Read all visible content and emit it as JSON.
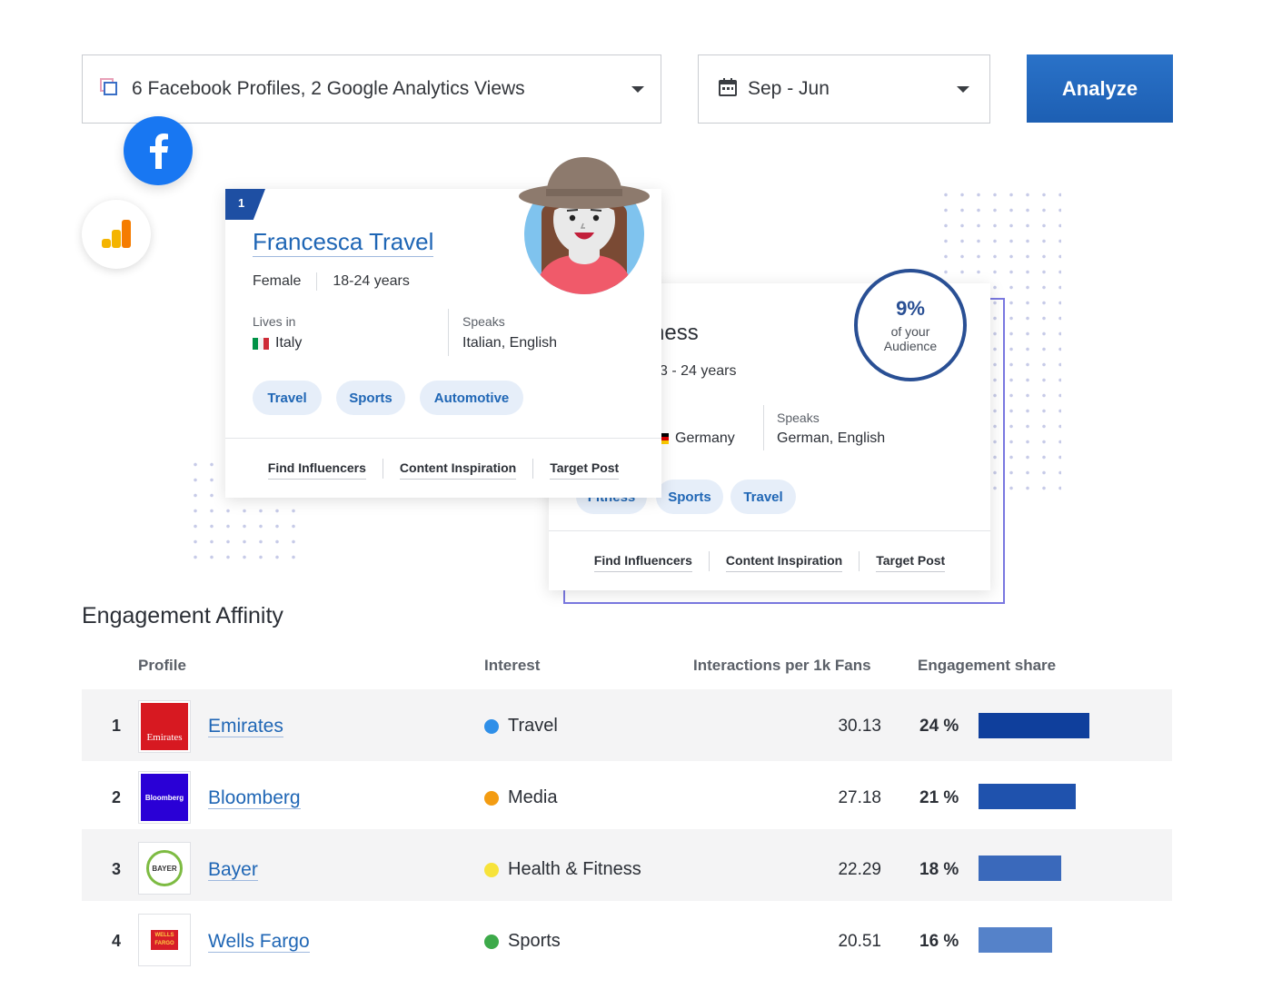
{
  "controls": {
    "profiles_label": "6 Facebook Profiles, 2 Google Analytics Views",
    "date_label": "Sep - Jun",
    "analyze_label": "Analyze"
  },
  "front_card": {
    "rank": "1",
    "name": "Francesca Travel",
    "gender": "Female",
    "age": "18-24 years",
    "lives_in_label": "Lives in",
    "lives_in_value": "Italy",
    "speaks_label": "Speaks",
    "speaks_value": "Italian, English",
    "interests": [
      "Travel",
      "Sports",
      "Automotive"
    ],
    "actions": [
      "Find Influencers",
      "Content Inspiration",
      "Target Post"
    ]
  },
  "back_card": {
    "name_fragment": "ness",
    "age_fragment": "3 - 24 years",
    "lives_in_value": "Germany",
    "speaks_label": "Speaks",
    "speaks_value": "German, English",
    "interests": [
      "Fitness",
      "Sports",
      "Travel"
    ],
    "actions": [
      "Find Influencers",
      "Content Inspiration",
      "Target Post"
    ],
    "audience_pct": "9%",
    "audience_line1": "of your",
    "audience_line2": "Audience"
  },
  "table": {
    "title": "Engagement Affinity",
    "headers": {
      "profile": "Profile",
      "interest": "Interest",
      "interactions": "Interactions per 1k Fans",
      "share": "Engagement share"
    },
    "rows": [
      {
        "rank": "1",
        "brand": "Emirates",
        "logo_text": "Emirates",
        "interest": "Travel",
        "interest_color": "#2f8fe8",
        "interactions": "30.13",
        "share": "24 %",
        "share_value": 24,
        "bar_color": "#0f3f9c"
      },
      {
        "rank": "2",
        "brand": "Bloomberg",
        "logo_text": "Bloomberg",
        "interest": "Media",
        "interest_color": "#f39c12",
        "interactions": "27.18",
        "share": "21 %",
        "share_value": 21,
        "bar_color": "#1f52ad"
      },
      {
        "rank": "3",
        "brand": "Bayer",
        "logo_text": "BAYER",
        "interest": "Health & Fitness",
        "interest_color": "#f7e33a",
        "interactions": "22.29",
        "share": "18 %",
        "share_value": 18,
        "bar_color": "#3a69bb"
      },
      {
        "rank": "4",
        "brand": "Wells Fargo",
        "logo_text": "WELLS FARGO",
        "interest": "Sports",
        "interest_color": "#3daa4a",
        "interactions": "20.51",
        "share": "16 %",
        "share_value": 16,
        "bar_color": "#5582c9"
      }
    ]
  }
}
